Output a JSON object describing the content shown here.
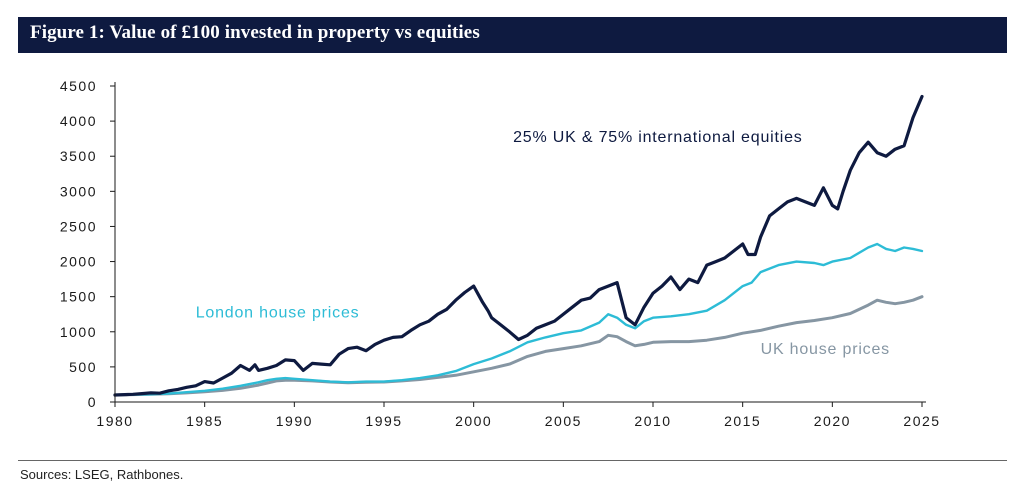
{
  "title": "Figure 1: Value of £100 invested in property vs equities",
  "source": "Sources:  LSEG, Rathbones.",
  "colors": {
    "header_bg": "#0e1a40",
    "equities": "#0e1a40",
    "london": "#2dbcd6",
    "uk": "#8696a3",
    "axis": "#1a1a1a"
  },
  "chart_data": {
    "type": "line",
    "title": "Figure 1: Value of £100 invested in property vs equities",
    "xlabel": "",
    "ylabel": "",
    "xlim": [
      1980,
      2025
    ],
    "ylim": [
      0,
      4500
    ],
    "x_ticks": [
      "1980",
      "1985",
      "1990",
      "1995",
      "2000",
      "2005",
      "2010",
      "2015",
      "2020",
      "2025"
    ],
    "y_ticks": [
      "0",
      "500",
      "1000",
      "1500",
      "2000",
      "2500",
      "3000",
      "3500",
      "4000",
      "4500"
    ],
    "grid": false,
    "legend": "inline labels",
    "series": [
      {
        "name": "25% UK & 75% international equities",
        "x": [
          1980,
          1981,
          1982,
          1982.5,
          1983,
          1983.5,
          1984,
          1984.5,
          1985,
          1985.5,
          1986,
          1986.5,
          1987,
          1987.5,
          1987.8,
          1988,
          1988.5,
          1989,
          1989.5,
          1990,
          1990.5,
          1991,
          1991.5,
          1992,
          1992.5,
          1993,
          1993.5,
          1994,
          1994.5,
          1995,
          1995.5,
          1996,
          1996.5,
          1997,
          1997.5,
          1998,
          1998.5,
          1999,
          1999.5,
          2000,
          2000.5,
          2000.8,
          2001,
          2001.5,
          2002,
          2002.5,
          2003,
          2003.5,
          2004,
          2004.5,
          2005,
          2005.5,
          2006,
          2006.5,
          2007,
          2007.5,
          2008,
          2008.5,
          2009,
          2009.5,
          2010,
          2010.5,
          2011,
          2011.5,
          2012,
          2012.5,
          2013,
          2013.5,
          2014,
          2014.5,
          2015,
          2015.3,
          2015.7,
          2016,
          2016.5,
          2017,
          2017.5,
          2018,
          2018.5,
          2019,
          2019.5,
          2020,
          2020.3,
          2020.6,
          2021,
          2021.5,
          2022,
          2022.5,
          2023,
          2023.5,
          2024,
          2024.5,
          2025
        ],
        "values": [
          100,
          110,
          130,
          125,
          160,
          180,
          210,
          230,
          290,
          270,
          340,
          410,
          520,
          450,
          530,
          450,
          480,
          520,
          600,
          590,
          450,
          550,
          540,
          530,
          680,
          760,
          780,
          730,
          820,
          880,
          920,
          930,
          1020,
          1100,
          1150,
          1250,
          1320,
          1450,
          1560,
          1650,
          1420,
          1300,
          1200,
          1100,
          1000,
          890,
          950,
          1050,
          1100,
          1150,
          1250,
          1350,
          1450,
          1480,
          1600,
          1650,
          1700,
          1200,
          1100,
          1350,
          1550,
          1650,
          1780,
          1600,
          1750,
          1700,
          1950,
          2000,
          2050,
          2150,
          2250,
          2100,
          2100,
          2350,
          2650,
          2750,
          2850,
          2900,
          2850,
          2800,
          3050,
          2800,
          2750,
          3000,
          3300,
          3550,
          3700,
          3550,
          3500,
          3600,
          3650,
          4050,
          4350
        ]
      },
      {
        "name": "London house prices",
        "x": [
          1980,
          1981,
          1982,
          1983,
          1984,
          1985,
          1986,
          1987,
          1988,
          1988.5,
          1989,
          1989.5,
          1990,
          1991,
          1992,
          1993,
          1994,
          1995,
          1996,
          1997,
          1998,
          1999,
          2000,
          2001,
          2002,
          2003,
          2004,
          2005,
          2006,
          2007,
          2007.5,
          2008,
          2008.5,
          2009,
          2009.5,
          2010,
          2011,
          2012,
          2013,
          2014,
          2015,
          2015.5,
          2016,
          2017,
          2018,
          2019,
          2019.5,
          2020,
          2021,
          2022,
          2022.5,
          2023,
          2023.5,
          2024,
          2024.5,
          2025
        ],
        "values": [
          100,
          105,
          110,
          120,
          140,
          160,
          190,
          230,
          280,
          310,
          330,
          340,
          330,
          310,
          290,
          280,
          290,
          290,
          310,
          340,
          380,
          440,
          540,
          620,
          720,
          850,
          920,
          980,
          1020,
          1130,
          1250,
          1200,
          1100,
          1050,
          1150,
          1200,
          1220,
          1250,
          1300,
          1450,
          1650,
          1700,
          1850,
          1950,
          2000,
          1980,
          1950,
          2000,
          2050,
          2200,
          2250,
          2180,
          2150,
          2200,
          2180,
          2150
        ]
      },
      {
        "name": "UK house prices",
        "x": [
          1980,
          1981,
          1982,
          1983,
          1984,
          1985,
          1986,
          1987,
          1988,
          1988.5,
          1989,
          1989.5,
          1990,
          1991,
          1992,
          1993,
          1994,
          1995,
          1996,
          1997,
          1998,
          1999,
          2000,
          2001,
          2002,
          2003,
          2004,
          2005,
          2006,
          2007,
          2007.5,
          2008,
          2008.5,
          2009,
          2009.5,
          2010,
          2011,
          2012,
          2013,
          2014,
          2015,
          2016,
          2017,
          2018,
          2019,
          2020,
          2021,
          2022,
          2022.5,
          2023,
          2023.5,
          2024,
          2024.5,
          2025
        ],
        "values": [
          100,
          105,
          110,
          118,
          130,
          145,
          165,
          195,
          240,
          270,
          300,
          310,
          310,
          300,
          285,
          275,
          280,
          285,
          300,
          320,
          350,
          380,
          430,
          480,
          540,
          650,
          720,
          760,
          800,
          860,
          950,
          930,
          860,
          800,
          820,
          850,
          860,
          860,
          880,
          920,
          980,
          1020,
          1080,
          1130,
          1160,
          1200,
          1260,
          1380,
          1450,
          1420,
          1400,
          1420,
          1450,
          1500
        ]
      }
    ],
    "annotations": [
      {
        "text": "25% UK & 75% international equities",
        "x": 2002.2,
        "y": 3700
      },
      {
        "text": "London house prices",
        "x": 1984.5,
        "y": 1200
      },
      {
        "text": "UK house prices",
        "x": 2016,
        "y": 680
      }
    ]
  }
}
